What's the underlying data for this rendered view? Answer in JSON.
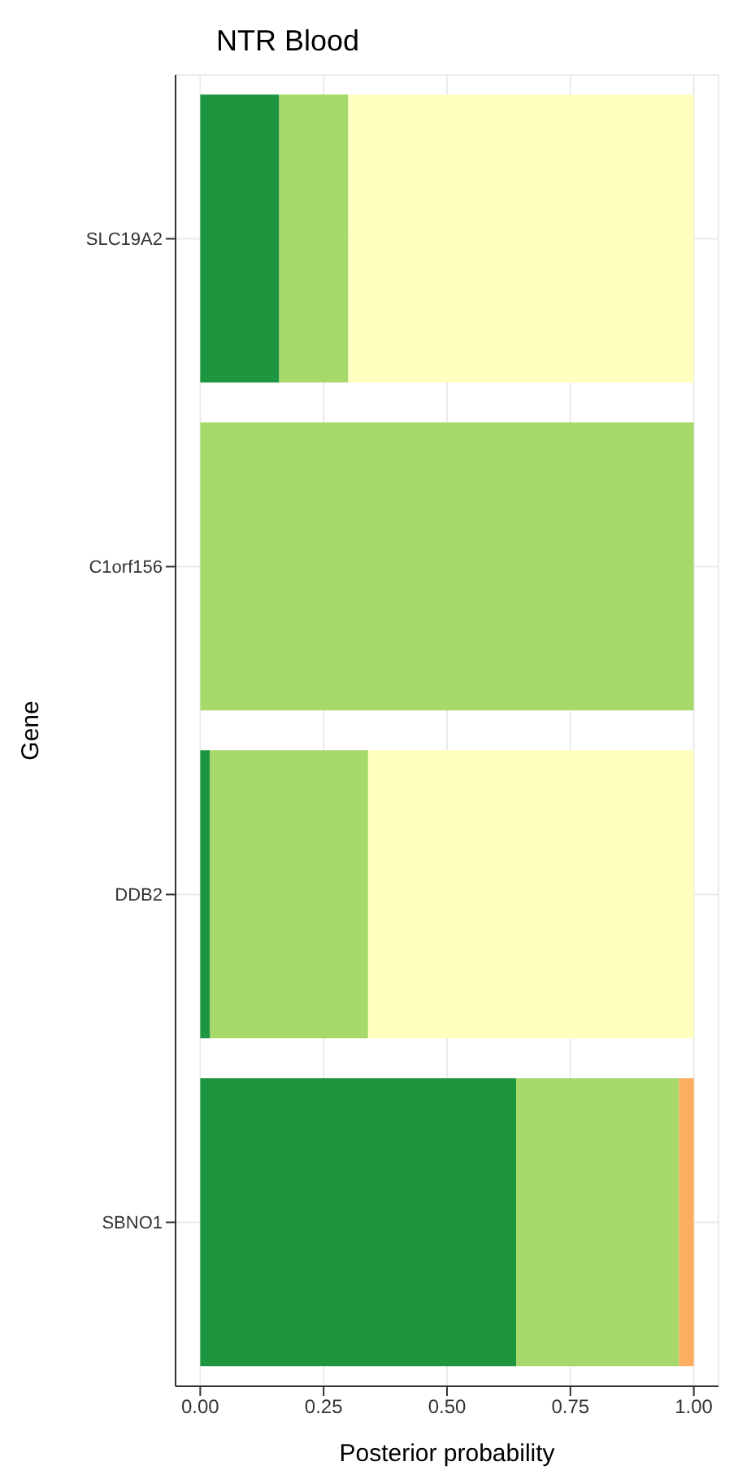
{
  "chart_data": {
    "type": "bar",
    "title": "NTR Blood",
    "xlabel": "Posterior probability",
    "ylabel": "Gene",
    "orientation": "horizontal",
    "stacked": true,
    "categories": [
      "SLC19A2",
      "C1orf156",
      "DDB2",
      "SBNO1"
    ],
    "series": [
      {
        "color": "#1e9640",
        "values": [
          0.16,
          0,
          0.02,
          0.64
        ]
      },
      {
        "color": "#a6d96a",
        "values": [
          0.14,
          1.0,
          0.32,
          0.33
        ]
      },
      {
        "color": "#ffffbf",
        "values": [
          0.7,
          0,
          0.66,
          0
        ]
      },
      {
        "color": "#fdae61",
        "values": [
          0,
          0,
          0,
          0.03
        ]
      }
    ],
    "xlim": [
      -0.05,
      1.05
    ],
    "xticks": [
      {
        "value": 0,
        "label": "0.00"
      },
      0.25,
      {
        "value": 0.5,
        "label": "0.50"
      },
      0.75,
      {
        "value": 1,
        "label": "1.00"
      }
    ],
    "grid": true,
    "legend": false
  }
}
